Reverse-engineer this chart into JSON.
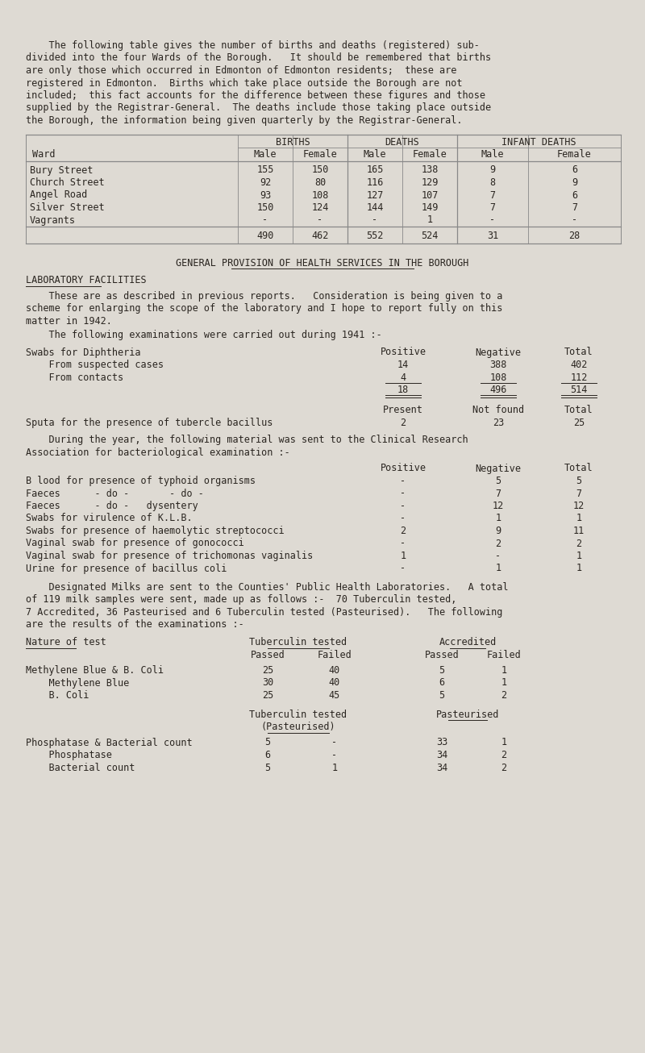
{
  "bg_color": "#dedad3",
  "text_color": "#2a2520",
  "page_width": 8.0,
  "page_height": 13.06,
  "dpi": 100,
  "intro_text": [
    "    The following table gives the number of births and deaths (registered) sub-",
    "divided into the four Wards of the Borough.   It should be remembered that births",
    "are only those which occurred in Edmonton of Edmonton residents;  these are",
    "registered in Edmonton.  Births which take place outside the Borough are not",
    "included;  this fact accounts for the difference between these figures and those",
    "supplied by the Registrar-General.  The deaths include those taking place outside",
    "the Borough, the information being given quarterly by the Registrar-General."
  ],
  "table1_rows": [
    [
      "Bury Street",
      "155",
      "150",
      "165",
      "138",
      "9",
      "6"
    ],
    [
      "Church Street",
      "92",
      "80",
      "116",
      "129",
      "8",
      "9"
    ],
    [
      "Angel Road",
      "93",
      "108",
      "127",
      "107",
      "7",
      "6"
    ],
    [
      "Silver Street",
      "150",
      "124",
      "144",
      "149",
      "7",
      "7"
    ],
    [
      "Vagrants",
      "-",
      "-",
      "-",
      "1",
      "-",
      "-"
    ]
  ],
  "table1_totals": [
    "490",
    "462",
    "552",
    "524",
    "31",
    "28"
  ],
  "section_title": "GENERAL PROVISION OF HEALTH SERVICES IN THE BOROUGH",
  "subsection_title": "LABORATORY FACILITIES",
  "para1_lines": [
    "    These are as described in previous reports.   Consideration is being given to a",
    "scheme for enlarging the scope of the laboratory and I hope to report fully on this",
    "matter in 1942."
  ],
  "para2": "    The following examinations were carried out during 1941 :-",
  "diphtheria_label": "Swabs for Diphtheria",
  "diphtheria_rows": [
    [
      "    From suspected cases",
      "14",
      "388",
      "402"
    ],
    [
      "    From contacts",
      "4",
      "108",
      "112"
    ]
  ],
  "diphtheria_totals": [
    "18",
    "496",
    "514"
  ],
  "tubercle_row": [
    "Sputa for the presence of tubercle bacillus",
    "2",
    "23",
    "25"
  ],
  "para3_lines": [
    "    During the year, the following material was sent to the Clinical Research",
    "Association for bacteriological examination :-"
  ],
  "clinical_rows": [
    [
      "B lood for presence of typhoid organisms",
      "-",
      "5",
      "5"
    ],
    [
      "Faeces      - do -       - do -",
      "-",
      "7",
      "7"
    ],
    [
      "Faeces      - do -   dysentery",
      "-",
      "12",
      "12"
    ],
    [
      "Swabs for virulence of K.L.B.",
      "-",
      "1",
      "1"
    ],
    [
      "Swabs for presence of haemolytic streptococci",
      "2",
      "9",
      "11"
    ],
    [
      "Vaginal swab for presence of gonococci",
      "-",
      "2",
      "2"
    ],
    [
      "Vaginal swab for presence of trichomonas vaginalis",
      "1",
      "-",
      "1"
    ],
    [
      "Urine for presence of bacillus coli",
      "-",
      "1",
      "1"
    ]
  ],
  "milk_para_lines": [
    "    Designated Milks are sent to the Counties' Public Health Laboratories.   A total",
    "of 119 milk samples were sent, made up as follows :-  70 Tuberculin tested,",
    "7 Accredited, 36 Pasteurised and 6 Tuberculin tested (Pasteurised).   The following",
    "are the results of the examinations :-"
  ],
  "milk_rows1": [
    [
      "Methylene Blue & B. Coli",
      "25",
      "40",
      "5",
      "1"
    ],
    [
      "    Methylene Blue",
      "30",
      "40",
      "6",
      "1"
    ],
    [
      "    B. Coli",
      "25",
      "45",
      "5",
      "2"
    ]
  ],
  "milk_rows2": [
    [
      "Phosphatase & Bacterial count",
      "5",
      "-",
      "33",
      "1"
    ],
    [
      "    Phosphatase",
      "6",
      "-",
      "34",
      "2"
    ],
    [
      "    Bacterial count",
      "5",
      "1",
      "34",
      "2"
    ]
  ]
}
